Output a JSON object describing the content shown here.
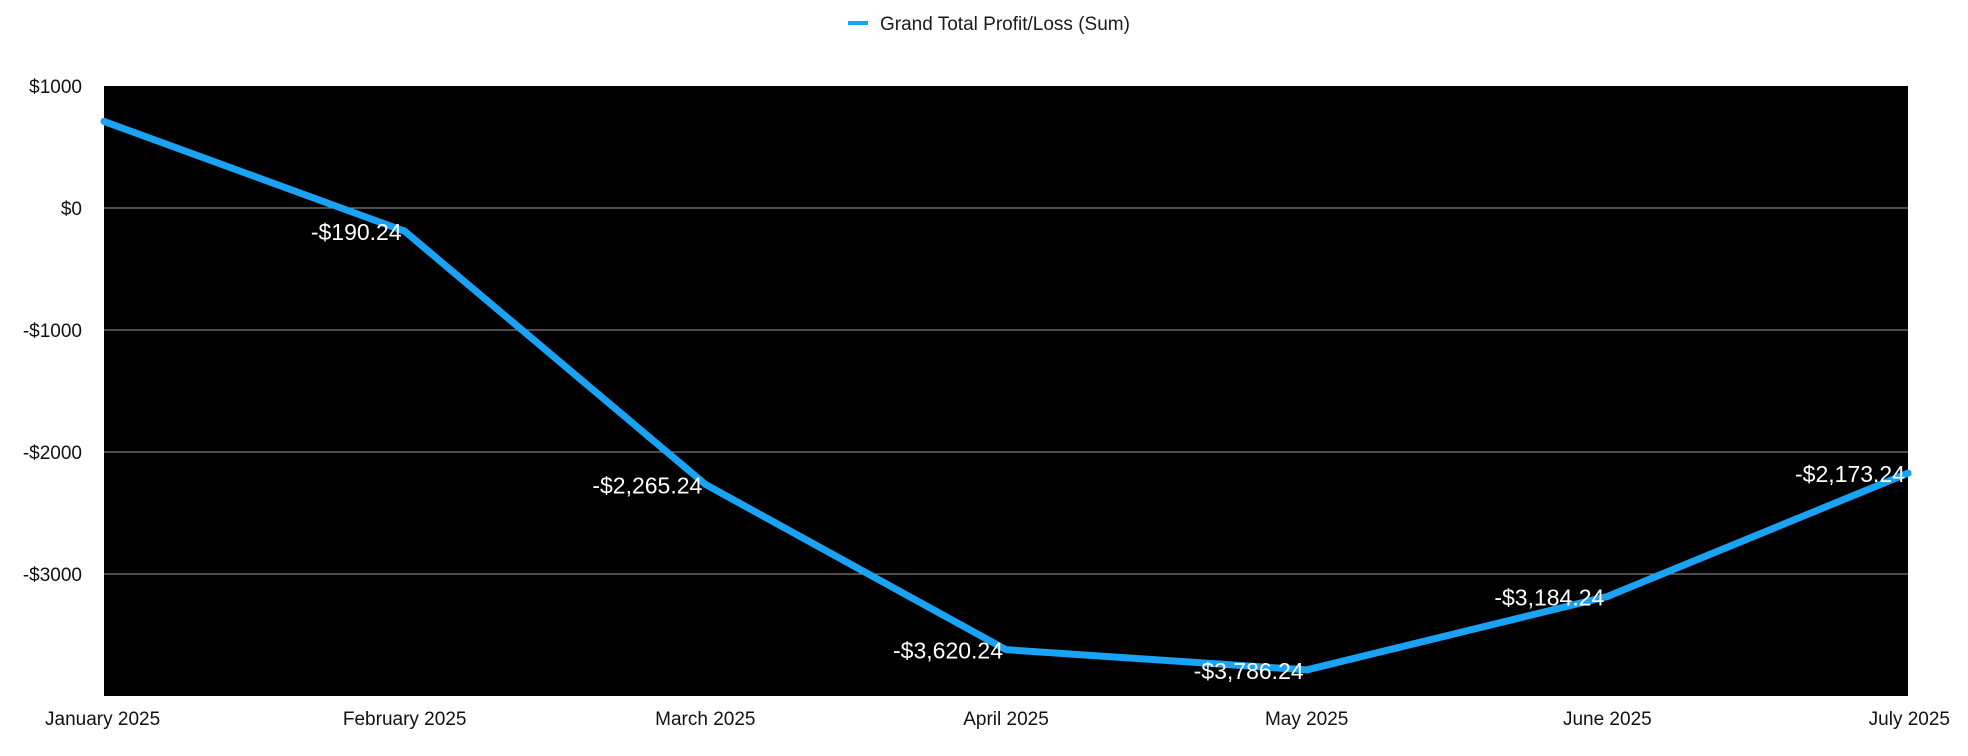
{
  "chart_data": {
    "type": "line",
    "title": "",
    "xlabel": "",
    "ylabel": "",
    "categories": [
      "January 2025",
      "February 2025",
      "March 2025",
      "April 2025",
      "May 2025",
      "June 2025",
      "July 2025"
    ],
    "series": [
      {
        "name": "Grand Total Profit/Loss (Sum)",
        "values": [
          709.76,
          -190.24,
          -2265.24,
          -3620.24,
          -3786.24,
          -3184.24,
          -2173.24
        ],
        "data_labels": [
          null,
          "-$190.24",
          "-$2,265.24",
          "-$3,620.24",
          "-$3,786.24",
          "-$3,184.24",
          "-$2,173.24"
        ],
        "color": "#1aa3f5"
      }
    ],
    "ylim": [
      -4000,
      1000
    ],
    "yticks": [
      1000,
      0,
      -1000,
      -2000,
      -3000
    ],
    "ytick_labels": [
      "$1000",
      "$0",
      "-$1000",
      "-$2000",
      "-$3000"
    ],
    "legend_position": "top-center",
    "plot_background": "#000000",
    "grid": true
  }
}
